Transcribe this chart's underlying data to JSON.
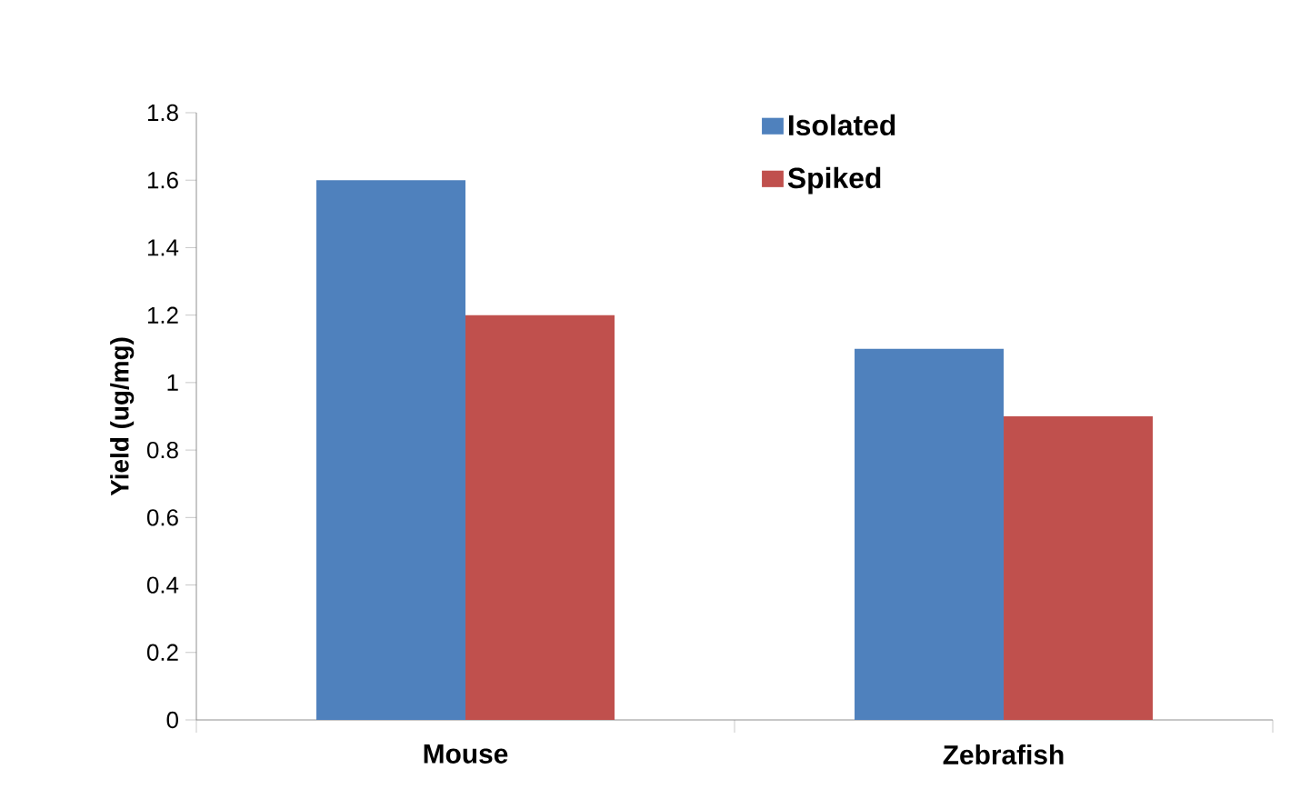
{
  "chart_data": {
    "type": "bar",
    "ylabel": "Yield (ug/mg)",
    "categories": [
      "Mouse",
      "Zebrafish"
    ],
    "series": [
      {
        "name": "Isolated",
        "color": "#4f81bd",
        "values": [
          1.6,
          1.1
        ]
      },
      {
        "name": "Spiked",
        "color": "#c0504d",
        "values": [
          1.2,
          0.9
        ]
      }
    ],
    "ylim": [
      0,
      1.8
    ],
    "yticks": [
      0,
      0.2,
      0.4,
      0.6,
      0.8,
      1,
      1.2,
      1.4,
      1.6,
      1.8
    ],
    "grid": false,
    "legend": "top"
  }
}
